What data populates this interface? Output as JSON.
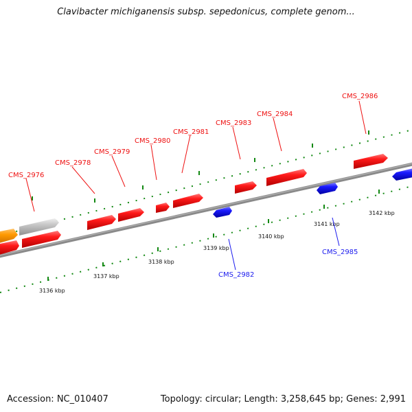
{
  "header": {
    "title": "Clavibacter michiganensis subsp. sepedonicus, complete genom..."
  },
  "footer": {
    "accession": "Accession: NC_010407",
    "summary": "Topology: circular; Length: 3,258,645 bp; Genes: 2,991"
  },
  "colors": {
    "forward_gene": "#ee1111",
    "reverse_gene": "#1a1aee",
    "orange_gene": "#ff9900",
    "gray_gene": "#bdbdbd",
    "tick": "#118811",
    "backbone": "#888888"
  },
  "axis": {
    "unit": "kbp",
    "labels": [
      "3136 kbp",
      "3137 kbp",
      "3138 kbp",
      "3139 kbp",
      "3140 kbp",
      "3141 kbp",
      "3142 kbp"
    ]
  },
  "genes": [
    {
      "label": "CMS_2976",
      "strand": "forward"
    },
    {
      "label": "CMS_2978",
      "strand": "forward"
    },
    {
      "label": "CMS_2979",
      "strand": "forward"
    },
    {
      "label": "CMS_2980",
      "strand": "forward"
    },
    {
      "label": "CMS_2981",
      "strand": "forward"
    },
    {
      "label": "CMS_2982",
      "strand": "reverse"
    },
    {
      "label": "CMS_2983",
      "strand": "forward"
    },
    {
      "label": "CMS_2984",
      "strand": "forward"
    },
    {
      "label": "CMS_2985",
      "strand": "reverse"
    },
    {
      "label": "CMS_2986",
      "strand": "forward"
    }
  ]
}
